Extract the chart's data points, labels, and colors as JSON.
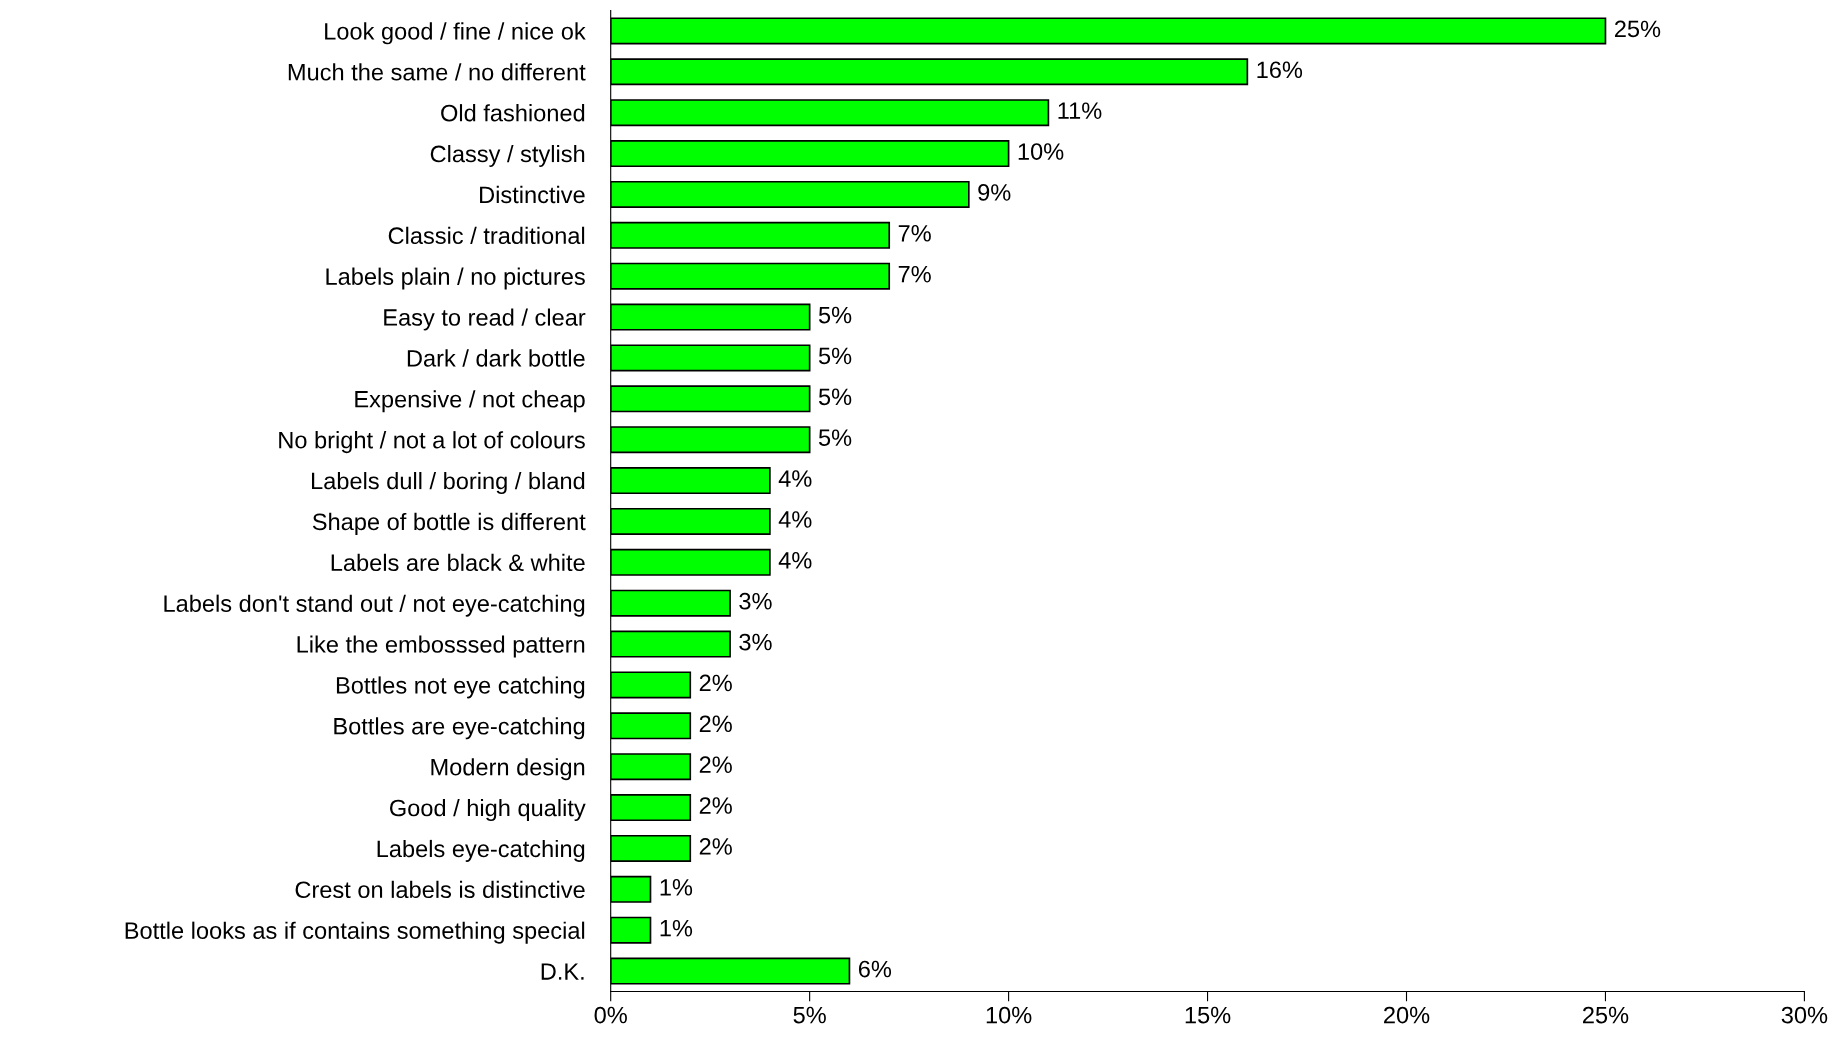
{
  "chart_data": {
    "type": "bar",
    "orientation": "horizontal",
    "categories": [
      "Look good / fine / nice ok",
      "Much the same / no different",
      "Old fashioned",
      "Classy / stylish",
      "Distinctive",
      "Classic / traditional",
      "Labels plain / no pictures",
      "Easy to read / clear",
      "Dark / dark bottle",
      "Expensive / not cheap",
      "No bright / not a lot of colours",
      "Labels dull / boring / bland",
      "Shape of bottle is different",
      "Labels are black & white",
      "Labels don't stand out / not eye-catching",
      "Like the embosssed pattern",
      "Bottles not eye catching",
      "Bottles are eye-catching",
      "Modern design",
      "Good / high quality",
      "Labels eye-catching",
      "Crest on labels is distinctive",
      "Bottle looks as if contains something special",
      "D.K."
    ],
    "values": [
      25,
      16,
      11,
      10,
      9,
      7,
      7,
      5,
      5,
      5,
      5,
      4,
      4,
      4,
      3,
      3,
      2,
      2,
      2,
      2,
      2,
      1,
      1,
      6
    ],
    "value_labels": [
      "25%",
      "16%",
      "11%",
      "10%",
      "9%",
      "7%",
      "7%",
      "5%",
      "5%",
      "5%",
      "5%",
      "4%",
      "4%",
      "4%",
      "3%",
      "3%",
      "2%",
      "2%",
      "2%",
      "2%",
      "2%",
      "1%",
      "1%",
      "6%"
    ],
    "color": "#00ff00",
    "xlim": [
      0,
      30
    ],
    "xticks": [
      {
        "value": 0,
        "label": "0%"
      },
      {
        "value": 5,
        "label": "5%"
      },
      {
        "value": 10,
        "label": "10%"
      },
      {
        "value": 15,
        "label": "15%"
      },
      {
        "value": 20,
        "label": "20%"
      },
      {
        "value": 25,
        "label": "25%"
      },
      {
        "value": 30,
        "label": "30%"
      }
    ],
    "grid": false
  }
}
